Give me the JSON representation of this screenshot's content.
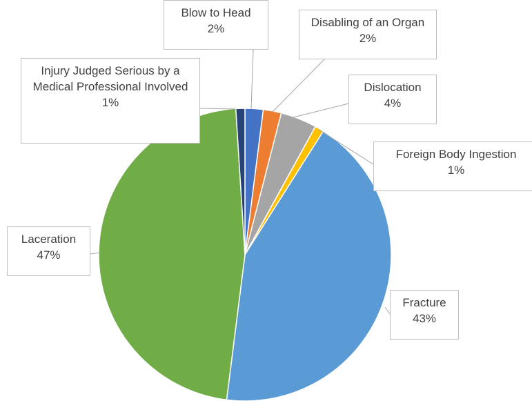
{
  "chart_data": {
    "type": "pie",
    "categories": [
      "Blow to Head",
      "Disabling of an Organ",
      "Dislocation",
      "Foreign Body Ingestion",
      "Fracture",
      "Laceration",
      "Injury Judged Serious by a Medical Professional Involved"
    ],
    "values": [
      2,
      2,
      4,
      1,
      43,
      47,
      1
    ],
    "value_labels": [
      "2%",
      "2%",
      "4%",
      "1%",
      "43%",
      "47%",
      "1%"
    ],
    "colors": [
      "#4472c4",
      "#ed7d31",
      "#a5a5a5",
      "#ffc000",
      "#5b9bd5",
      "#70ad47",
      "#264478"
    ]
  }
}
